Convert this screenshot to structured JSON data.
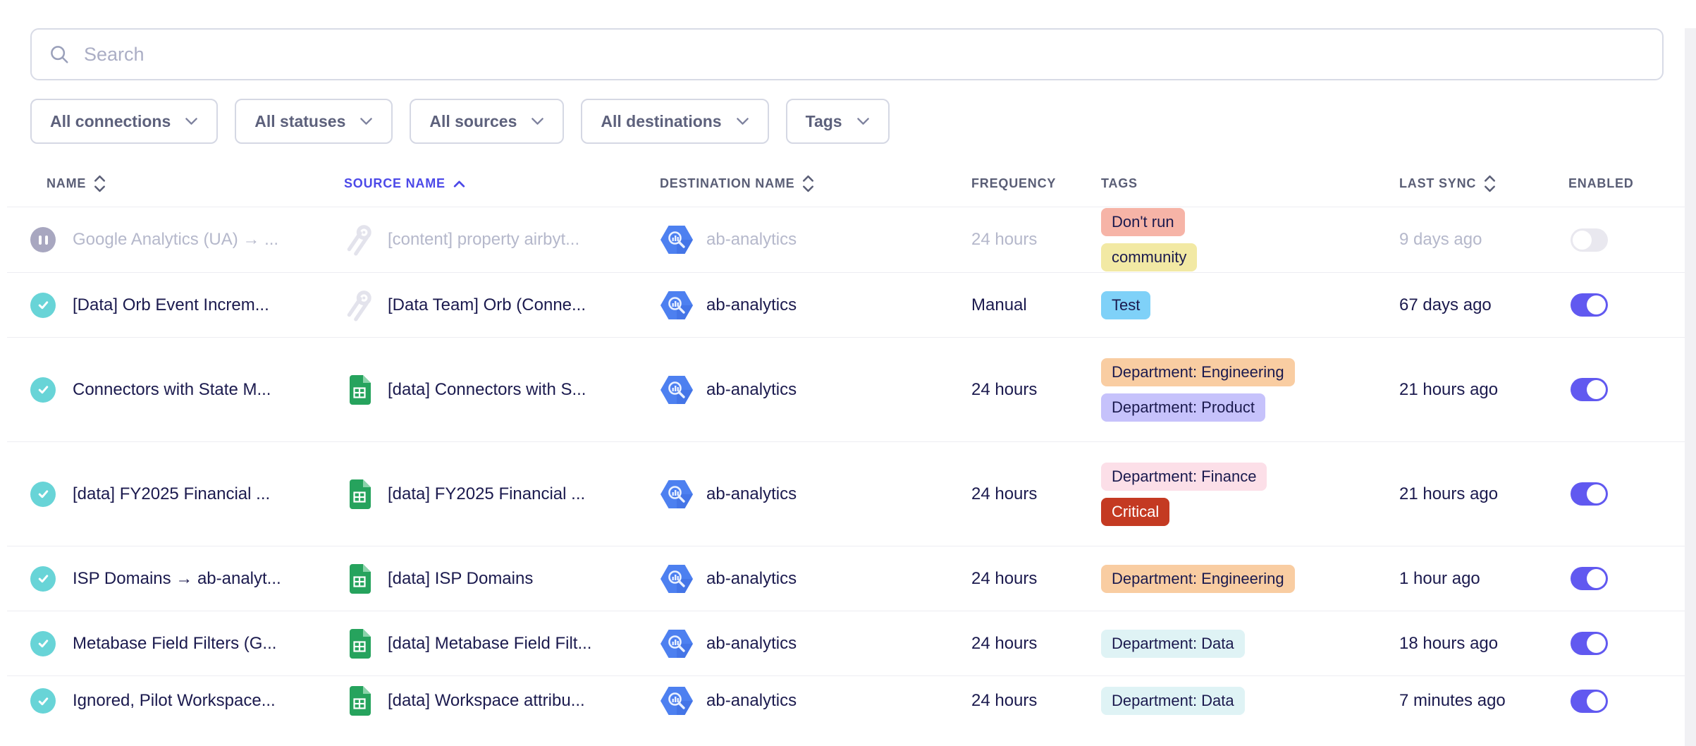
{
  "search": {
    "placeholder": "Search"
  },
  "filters": [
    {
      "id": "connections",
      "label": "All connections"
    },
    {
      "id": "statuses",
      "label": "All statuses"
    },
    {
      "id": "sources",
      "label": "All sources"
    },
    {
      "id": "destinations",
      "label": "All destinations"
    },
    {
      "id": "tags",
      "label": "Tags"
    }
  ],
  "table": {
    "columns": [
      {
        "id": "name",
        "label": "NAME",
        "sort": "both",
        "active": false
      },
      {
        "id": "source",
        "label": "SOURCE NAME",
        "sort": "asc",
        "active": true
      },
      {
        "id": "destination",
        "label": "DESTINATION NAME",
        "sort": "both",
        "active": false
      },
      {
        "id": "frequency",
        "label": "FREQUENCY",
        "sort": "none",
        "active": false
      },
      {
        "id": "tags",
        "label": "TAGS",
        "sort": "none",
        "active": false
      },
      {
        "id": "last_sync",
        "label": "LAST SYNC",
        "sort": "both",
        "active": false
      },
      {
        "id": "enabled",
        "label": "ENABLED",
        "sort": "none",
        "active": false
      }
    ],
    "rows": [
      {
        "status": "paused",
        "muted": true,
        "name": "Google Analytics (UA) → ...",
        "source_icon": "orb",
        "source": "[content] property airbyt...",
        "destination_icon": "bigquery",
        "destination": "ab-analytics",
        "frequency": "24 hours",
        "tags": [
          {
            "label": "Don't run",
            "bg": "#f6b4a7",
            "fg": "#1b1a4e"
          },
          {
            "label": "community",
            "bg": "#f2e9a4",
            "fg": "#1b1a4e"
          }
        ],
        "last_sync": "9 days ago",
        "enabled": false,
        "height": "normal"
      },
      {
        "status": "ok",
        "muted": false,
        "name": "[Data] Orb Event Increm...",
        "source_icon": "orb",
        "source": "[Data Team] Orb (Conne...",
        "destination_icon": "bigquery",
        "destination": "ab-analytics",
        "frequency": "Manual",
        "tags": [
          {
            "label": "Test",
            "bg": "#7fd1f8",
            "fg": "#1b1a4e"
          }
        ],
        "last_sync": "67 days ago",
        "enabled": true,
        "height": "normal"
      },
      {
        "status": "ok",
        "muted": false,
        "name": "Connectors with State M...",
        "source_icon": "sheets",
        "source": "[data] Connectors with S...",
        "destination_icon": "bigquery",
        "destination": "ab-analytics",
        "frequency": "24 hours",
        "tags": [
          {
            "label": "Department: Engineering",
            "bg": "#f9cda2",
            "fg": "#1b1a4e"
          },
          {
            "label": "Department: Product",
            "bg": "#c6c2fb",
            "fg": "#1b1a4e"
          }
        ],
        "last_sync": "21 hours ago",
        "enabled": true,
        "height": "tall"
      },
      {
        "status": "ok",
        "muted": false,
        "name": "[data] FY2025 Financial ...",
        "source_icon": "sheets",
        "source": "[data] FY2025 Financial ...",
        "destination_icon": "bigquery",
        "destination": "ab-analytics",
        "frequency": "24 hours",
        "tags": [
          {
            "label": "Department: Finance",
            "bg": "#fcdfe8",
            "fg": "#1b1a4e"
          },
          {
            "label": "Critical",
            "bg": "#c43a22",
            "fg": "#ffffff"
          }
        ],
        "last_sync": "21 hours ago",
        "enabled": true,
        "height": "tall"
      },
      {
        "status": "ok",
        "muted": false,
        "name": "ISP Domains → ab-analyt...",
        "source_icon": "sheets",
        "source": "[data] ISP Domains",
        "destination_icon": "bigquery",
        "destination": "ab-analytics",
        "frequency": "24 hours",
        "tags": [
          {
            "label": "Department: Engineering",
            "bg": "#f9cda2",
            "fg": "#1b1a4e"
          }
        ],
        "last_sync": "1 hour ago",
        "enabled": true,
        "height": "normal"
      },
      {
        "status": "ok",
        "muted": false,
        "name": "Metabase Field Filters (G...",
        "source_icon": "sheets",
        "source": "[data] Metabase Field Filt...",
        "destination_icon": "bigquery",
        "destination": "ab-analytics",
        "frequency": "24 hours",
        "tags": [
          {
            "label": "Department: Data",
            "bg": "#dff3f5",
            "fg": "#1b1a4e"
          }
        ],
        "last_sync": "18 hours ago",
        "enabled": true,
        "height": "normal"
      },
      {
        "status": "ok",
        "muted": false,
        "name": "Ignored, Pilot Workspace...",
        "source_icon": "sheets",
        "source": "[data] Workspace attribu...",
        "destination_icon": "bigquery",
        "destination": "ab-analytics",
        "frequency": "24 hours",
        "tags": [
          {
            "label": "Department: Data",
            "bg": "#dff3f5",
            "fg": "#1b1a4e"
          }
        ],
        "last_sync": "7 minutes ago",
        "enabled": true,
        "height": "short"
      }
    ]
  },
  "colors": {
    "accent": "#6159f0",
    "active_sort": "#4c49e8",
    "status_ok": "#68d4d7",
    "status_paused": "#a8a7c0",
    "critical_tag": "#c43a22"
  }
}
